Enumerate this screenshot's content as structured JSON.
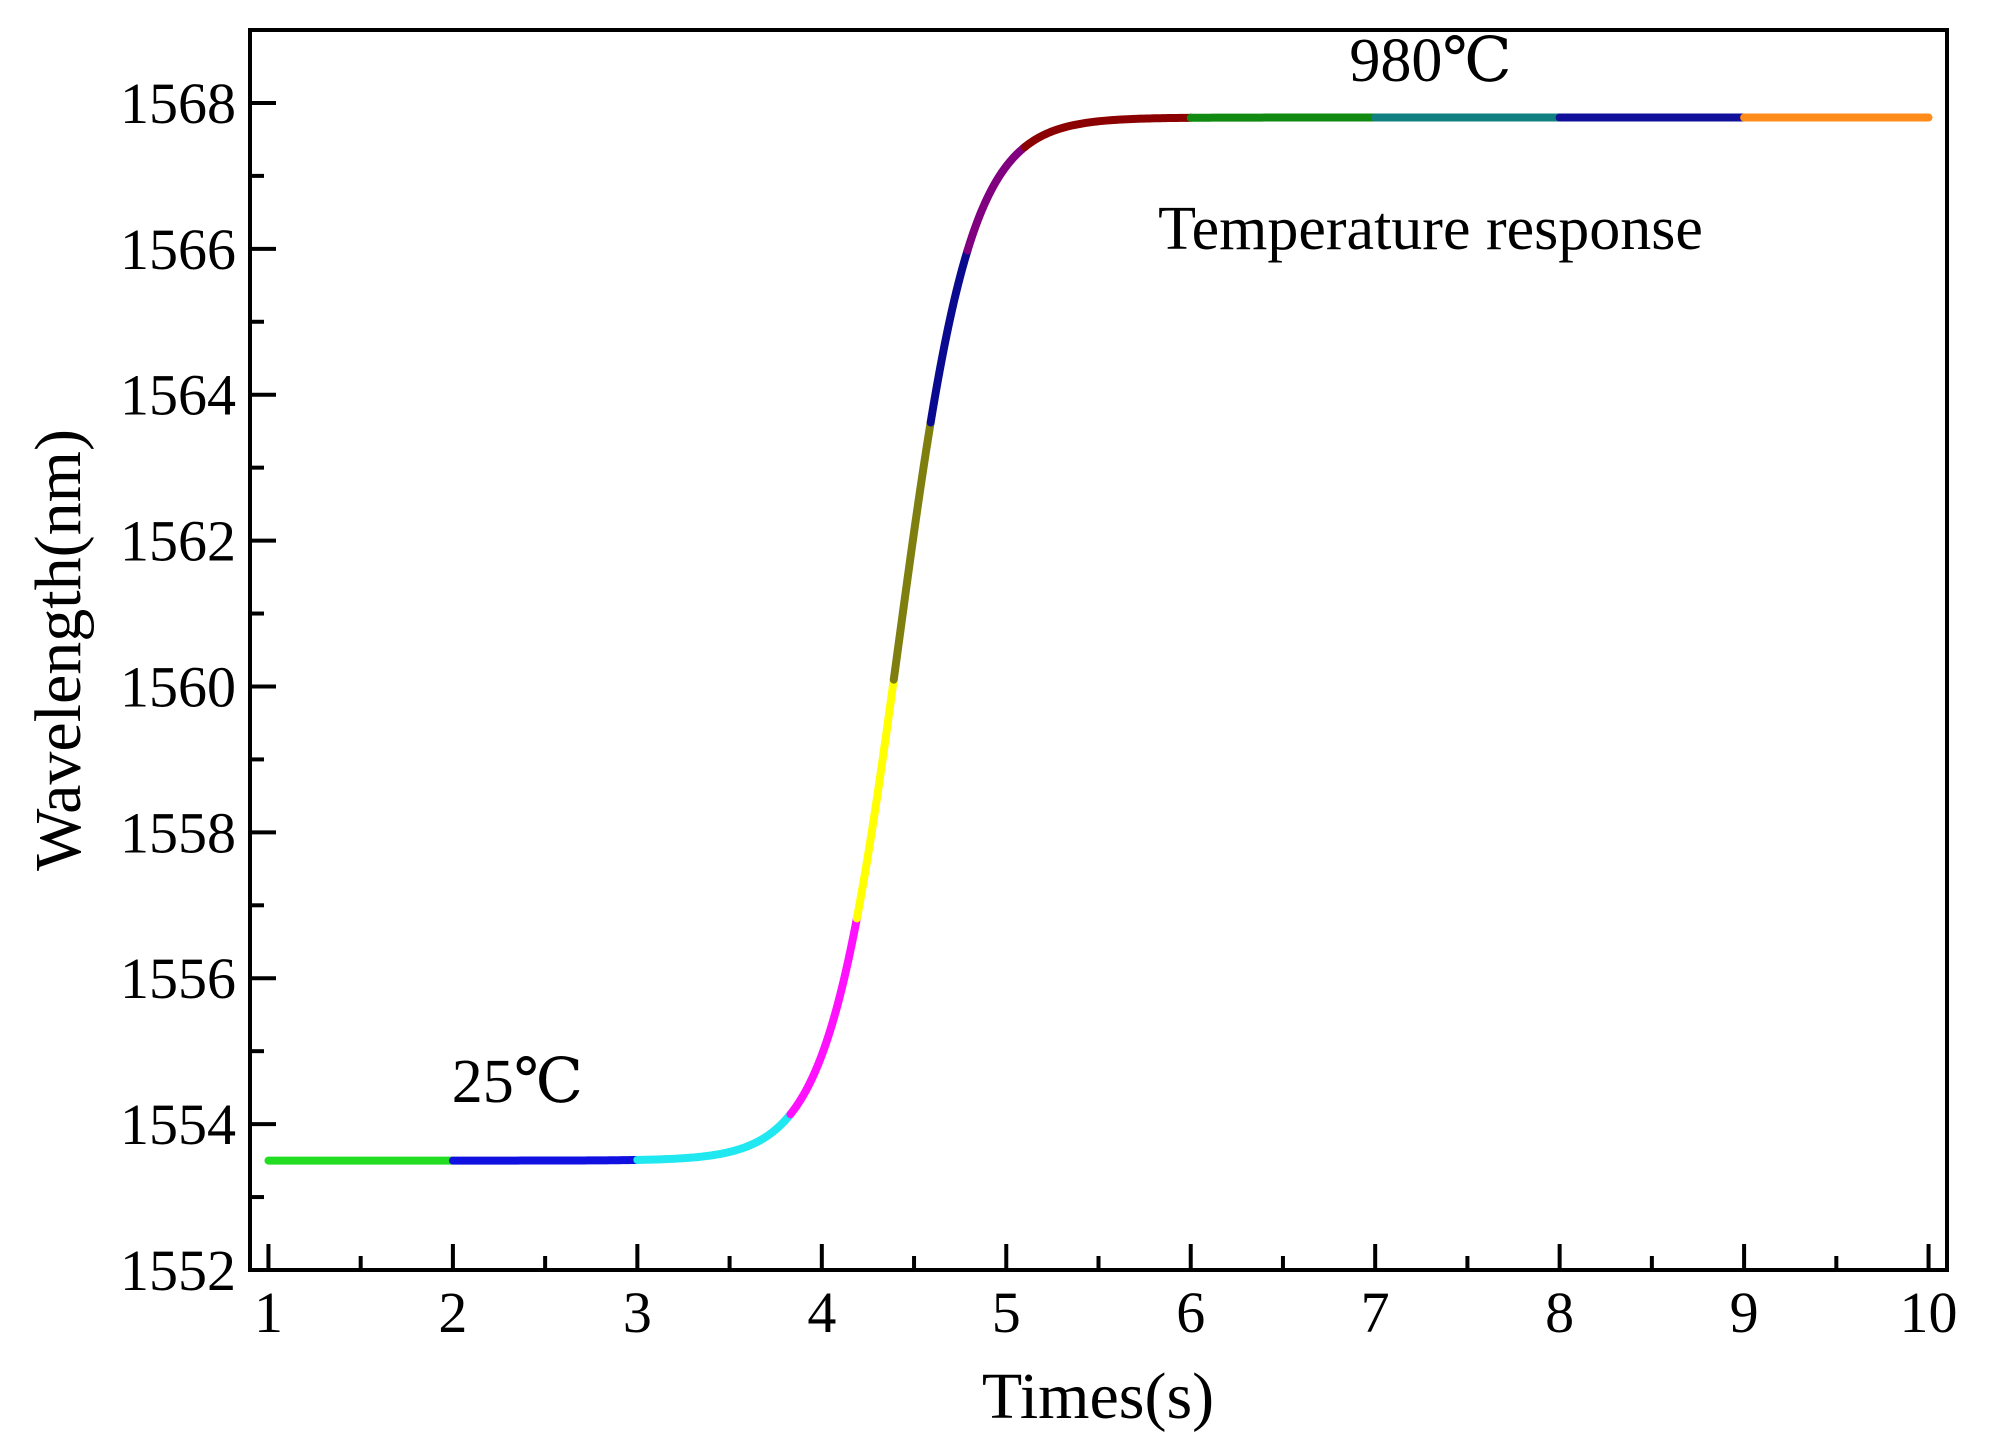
{
  "chart_data": {
    "type": "line",
    "title": "",
    "xlabel": "Times(s)",
    "ylabel": "Wavelength(nm)",
    "xlim": [
      0.9,
      10.1
    ],
    "ylim": [
      1552,
      1569
    ],
    "x_ticks": [
      1,
      2,
      3,
      4,
      5,
      6,
      7,
      8,
      9,
      10
    ],
    "y_ticks": [
      1552,
      1554,
      1556,
      1558,
      1560,
      1562,
      1564,
      1566,
      1568
    ],
    "x_tick_labels": [
      "1",
      "2",
      "3",
      "4",
      "5",
      "6",
      "7",
      "8",
      "9",
      "10"
    ],
    "y_tick_labels": [
      "1552",
      "1554",
      "1556",
      "1558",
      "1560",
      "1562",
      "1564",
      "1566",
      "1568"
    ],
    "grid": false,
    "curve": {
      "type": "logistic",
      "low": 1553.5,
      "high": 1567.8,
      "midpoint": 4.42,
      "steepness": 5.2
    },
    "series": [
      {
        "name": "segment-1",
        "x_range": [
          1.0,
          2.0
        ],
        "color": "#22dd22"
      },
      {
        "name": "segment-2",
        "x_range": [
          2.0,
          3.0
        ],
        "color": "#1010e0"
      },
      {
        "name": "segment-3",
        "x_range": [
          3.0,
          3.83
        ],
        "color": "#20e8f0"
      },
      {
        "name": "segment-4",
        "x_range": [
          3.83,
          4.19
        ],
        "color": "#ff10ff"
      },
      {
        "name": "segment-5",
        "x_range": [
          4.19,
          4.39
        ],
        "color": "#ffff00"
      },
      {
        "name": "segment-6",
        "x_range": [
          4.39,
          4.59
        ],
        "color": "#7f7f10"
      },
      {
        "name": "segment-7",
        "x_range": [
          4.59,
          4.79
        ],
        "color": "#0a0a90"
      },
      {
        "name": "segment-8",
        "x_range": [
          4.79,
          5.1
        ],
        "color": "#800080"
      },
      {
        "name": "segment-9",
        "x_range": [
          5.1,
          6.0
        ],
        "color": "#8b0000"
      },
      {
        "name": "segment-10",
        "x_range": [
          6.0,
          7.0
        ],
        "color": "#108a10"
      },
      {
        "name": "segment-11",
        "x_range": [
          7.0,
          8.0
        ],
        "color": "#108080"
      },
      {
        "name": "segment-12",
        "x_range": [
          8.0,
          9.0
        ],
        "color": "#10109a"
      },
      {
        "name": "segment-13",
        "x_range": [
          9.0,
          10.0
        ],
        "color": "#ff8c1a"
      }
    ],
    "annotations": [
      {
        "text": "25℃",
        "x": 2.35,
        "y": 1554.3
      },
      {
        "text": "980℃",
        "x": 7.3,
        "y": 1568.3
      },
      {
        "text": "Temperature response",
        "x": 7.3,
        "y": 1566.0
      }
    ]
  }
}
